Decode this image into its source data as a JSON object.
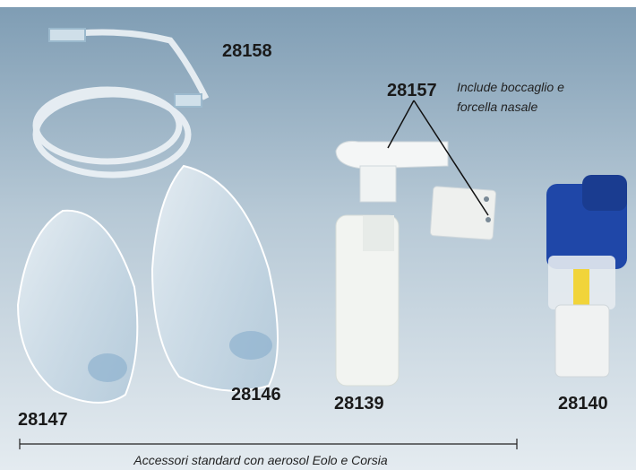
{
  "labels": {
    "tubing": "28158",
    "mouthpiece_kit": "28157",
    "mouthpiece_note_line1": "Include boccaglio e",
    "mouthpiece_note_line2": "forcella nasale",
    "child_mask": "28147",
    "adult_mask": "28146",
    "nebulizer_cup": "28139",
    "nebulizer_complete": "28140"
  },
  "caption": "Accessori standard con aerosol Eolo e Corsia"
}
